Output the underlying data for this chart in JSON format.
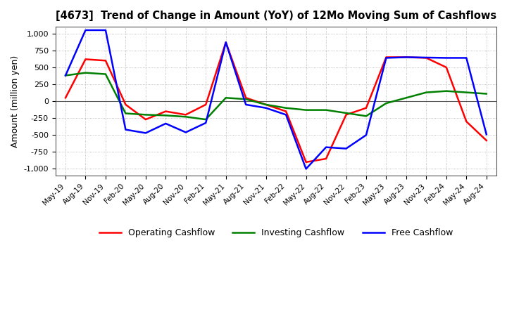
{
  "title": "[4673]  Trend of Change in Amount (YoY) of 12Mo Moving Sum of Cashflows",
  "ylabel": "Amount (million yen)",
  "ylim": [
    -1100,
    1100
  ],
  "yticks": [
    -1000,
    -750,
    -500,
    -250,
    0,
    250,
    500,
    750,
    1000
  ],
  "background_color": "#ffffff",
  "plot_bg_color": "#ffffff",
  "grid_color": "#aaaaaa",
  "dates": [
    "May-19",
    "Aug-19",
    "Nov-19",
    "Feb-20",
    "May-20",
    "Aug-20",
    "Nov-20",
    "Feb-21",
    "May-21",
    "Aug-21",
    "Nov-21",
    "Feb-22",
    "May-22",
    "Aug-22",
    "Nov-22",
    "Feb-23",
    "May-23",
    "Aug-23",
    "Nov-23",
    "Feb-24",
    "May-24",
    "Aug-24"
  ],
  "operating": [
    50,
    620,
    600,
    -50,
    -270,
    -150,
    -200,
    -50,
    870,
    50,
    -50,
    -150,
    -900,
    -850,
    -200,
    -100,
    650,
    650,
    640,
    500,
    -300,
    -580
  ],
  "investing": [
    380,
    420,
    400,
    -180,
    -200,
    -210,
    -230,
    -270,
    50,
    30,
    -50,
    -100,
    -130,
    -130,
    -175,
    -220,
    -30,
    50,
    130,
    150,
    130,
    110
  ],
  "free": [
    380,
    1050,
    1050,
    -420,
    -470,
    -330,
    -460,
    -320,
    870,
    -50,
    -100,
    -200,
    -1000,
    -680,
    -700,
    -500,
    640,
    650,
    645,
    640,
    640,
    -490
  ],
  "op_color": "#ff0000",
  "inv_color": "#008000",
  "free_color": "#0000ff",
  "line_width": 1.8,
  "legend_labels": [
    "Operating Cashflow",
    "Investing Cashflow",
    "Free Cashflow"
  ]
}
